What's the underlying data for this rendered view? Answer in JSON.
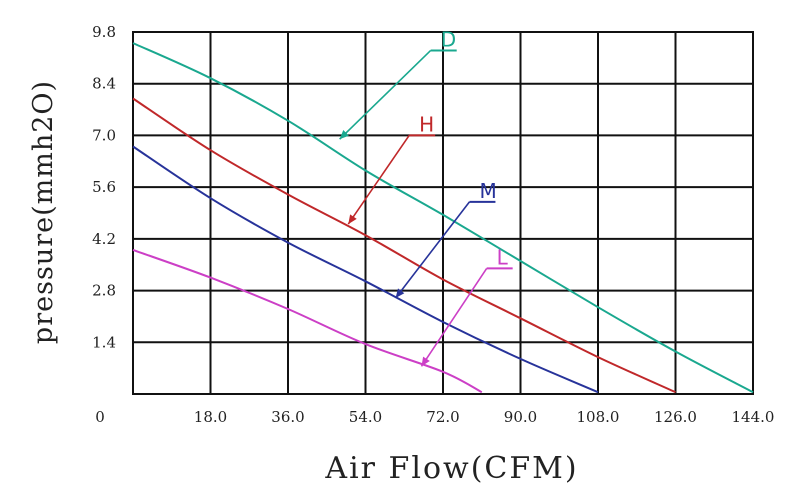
{
  "chart_data": {
    "type": "line",
    "title": "",
    "xlabel": "Air Flow(CFM)",
    "ylabel": "pressure(mmh2O)",
    "xlim": [
      0,
      144
    ],
    "ylim": [
      0,
      9.8
    ],
    "x_ticks": [
      0,
      18,
      36,
      54,
      72,
      90,
      108,
      126,
      144
    ],
    "x_tick_labels": [
      "0",
      "18.0",
      "36.0",
      "54.0",
      "72.0",
      "90.0",
      "108.0",
      "126.0",
      "144.0"
    ],
    "y_ticks": [
      1.4,
      2.8,
      4.2,
      5.6,
      7.0,
      8.4,
      9.8
    ],
    "y_tick_labels": [
      "1.4",
      "2.8",
      "4.2",
      "5.6",
      "7.0",
      "8.4",
      "9.8"
    ],
    "grid": true,
    "legend": "inline-callouts",
    "series": [
      {
        "name": "D",
        "color": "#1aa88f",
        "x": [
          0,
          18,
          36,
          54,
          72,
          90,
          108,
          126,
          144
        ],
        "y": [
          9.5,
          8.55,
          7.4,
          6.05,
          4.85,
          3.6,
          2.35,
          1.15,
          0.05
        ],
        "label_at": [
          71,
          9.3
        ],
        "pointer_to": [
          48,
          6.9
        ]
      },
      {
        "name": "H",
        "color": "#c0282a",
        "x": [
          0,
          18,
          36,
          54,
          72,
          90,
          108,
          126
        ],
        "y": [
          8.0,
          6.6,
          5.4,
          4.3,
          3.1,
          2.05,
          1.0,
          0.05
        ],
        "label_at": [
          66,
          7.0
        ],
        "pointer_to": [
          50,
          4.6
        ]
      },
      {
        "name": "M",
        "color": "#27339a",
        "x": [
          0,
          18,
          36,
          54,
          72,
          90,
          108
        ],
        "y": [
          6.7,
          5.3,
          4.1,
          3.05,
          1.95,
          0.95,
          0.05
        ],
        "label_at": [
          80,
          5.2
        ],
        "pointer_to": [
          61,
          2.6
        ]
      },
      {
        "name": "L",
        "color": "#cc3fc6",
        "x": [
          0,
          18,
          36,
          54,
          72,
          81
        ],
        "y": [
          3.9,
          3.15,
          2.3,
          1.35,
          0.6,
          0.05
        ],
        "label_at": [
          84,
          3.4
        ],
        "pointer_to": [
          67,
          0.75
        ]
      }
    ]
  }
}
